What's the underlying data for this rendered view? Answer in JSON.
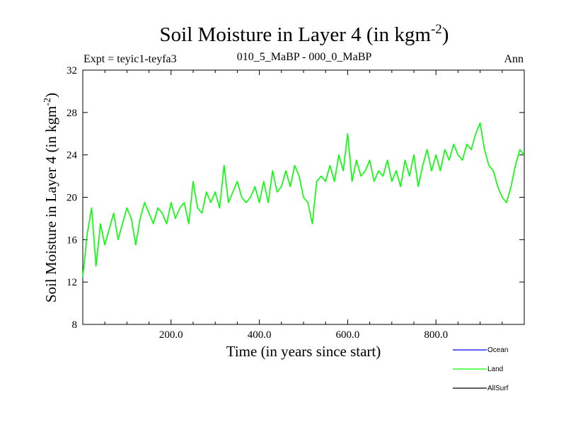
{
  "chart_data": {
    "type": "line",
    "title": "Soil Moisture in Layer 4 (in kgm",
    "title_sup": "-2",
    "title_close": ")",
    "subtitle_left": "Expt = teyic1-teyfa3",
    "subtitle_center": "010_5_MaBP - 000_0_MaBP",
    "subtitle_right": "Ann",
    "xlabel": "Time (in years since start)",
    "ylabel": "Soil Moisture in Layer 4 (in kgm",
    "ylabel_sup": "-2",
    "ylabel_close": ")",
    "xlim": [
      0,
      1000
    ],
    "ylim": [
      8,
      32
    ],
    "xticks": [
      200,
      400,
      600,
      800
    ],
    "xtick_labels": [
      "200.0",
      "400.0",
      "600.0",
      "800.0"
    ],
    "yticks": [
      8,
      12,
      16,
      20,
      24,
      28,
      32
    ],
    "ytick_labels": [
      "8",
      "12",
      "16",
      "20",
      "24",
      "28",
      "32"
    ],
    "series": [
      {
        "name": "Ocean",
        "color": "#0000ff",
        "values": []
      },
      {
        "name": "Land",
        "color": "#00ff00",
        "x": [
          0,
          10,
          20,
          30,
          40,
          50,
          60,
          70,
          80,
          90,
          100,
          110,
          120,
          130,
          140,
          150,
          160,
          170,
          180,
          190,
          200,
          210,
          220,
          230,
          240,
          250,
          260,
          270,
          280,
          290,
          300,
          310,
          320,
          330,
          340,
          350,
          360,
          370,
          380,
          390,
          400,
          410,
          420,
          430,
          440,
          450,
          460,
          470,
          480,
          490,
          500,
          510,
          520,
          530,
          540,
          550,
          560,
          570,
          580,
          590,
          600,
          610,
          620,
          630,
          640,
          650,
          660,
          670,
          680,
          690,
          700,
          710,
          720,
          730,
          740,
          750,
          760,
          770,
          780,
          790,
          800,
          810,
          820,
          830,
          840,
          850,
          860,
          870,
          880,
          890,
          900,
          910,
          920,
          930,
          940,
          950,
          960,
          970,
          980,
          990,
          1000
        ],
        "values": [
          12.5,
          16.5,
          19,
          13.5,
          17.5,
          15.5,
          17,
          18.5,
          16,
          17.5,
          19,
          18,
          15.5,
          18,
          19.5,
          18.5,
          17.5,
          19,
          18.5,
          17.5,
          19.5,
          18,
          19,
          19.5,
          17.5,
          21.5,
          19,
          18.5,
          20.5,
          19.5,
          20.5,
          19,
          23,
          19.5,
          20.5,
          21.5,
          20,
          19.5,
          20,
          21,
          19.5,
          21.5,
          19.5,
          22.5,
          20.5,
          21,
          22.5,
          21,
          23,
          22,
          20,
          19.5,
          17.5,
          21.5,
          22,
          21.5,
          23,
          21.5,
          24,
          22.5,
          26,
          21.5,
          23.5,
          22,
          22.5,
          23.5,
          21.5,
          22.5,
          22,
          23.5,
          21.5,
          22.5,
          21,
          23.5,
          22,
          24,
          21,
          23,
          24.5,
          22.5,
          24,
          22.5,
          24.5,
          23.5,
          25,
          24,
          23.5,
          25,
          24.5,
          26,
          27,
          24.5,
          23,
          22.5,
          21,
          20,
          19.5,
          21,
          23,
          24.5,
          24
        ]
      },
      {
        "name": "AllSurf",
        "color": "#000000",
        "values": []
      }
    ]
  }
}
